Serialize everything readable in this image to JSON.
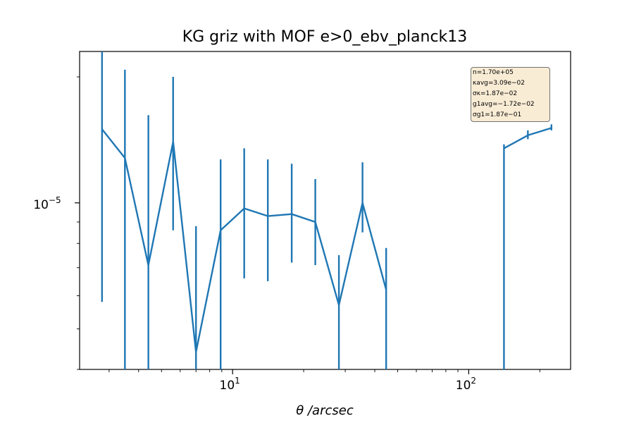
{
  "chart_data": {
    "type": "line",
    "title": "KG griz with MOF e>0_ebv_planck13",
    "xlabel": "θ /arcsec",
    "ylabel": "",
    "xscale": "log",
    "yscale": "log",
    "xlim": [
      2.25,
      270
    ],
    "ylim": [
      4e-06,
      2.3e-05
    ],
    "x_ticks": [
      {
        "base": "10",
        "exp": "1",
        "value": 10
      },
      {
        "base": "10",
        "exp": "2",
        "value": 100
      }
    ],
    "y_ticks": [
      {
        "base": "10",
        "exp": "−5",
        "value": 1e-05
      }
    ],
    "grid": false,
    "line_color": "#1f77b4",
    "series": [
      {
        "segments": [
          [
            {
              "x": 2.8,
              "y": 1.5e-05,
              "ylo": 5.8e-06,
              "yhi": 2.45e-05
            },
            {
              "x": 3.5,
              "y": 1.28e-05,
              "ylo": 4e-06,
              "yhi": 2.08e-05
            },
            {
              "x": 4.4,
              "y": 7.1e-06,
              "ylo": 4e-06,
              "yhi": 1.62e-05
            },
            {
              "x": 5.6,
              "y": 1.4e-05,
              "ylo": 8.6e-06,
              "yhi": 2e-05
            },
            {
              "x": 7.0,
              "y": 4.4e-06,
              "ylo": 4e-06,
              "yhi": 8.8e-06
            },
            {
              "x": 8.9,
              "y": 8.6e-06,
              "ylo": 4e-06,
              "yhi": 1.27e-05
            },
            {
              "x": 11.2,
              "y": 9.7e-06,
              "ylo": 6.6e-06,
              "yhi": 1.35e-05
            },
            {
              "x": 14.1,
              "y": 9.3e-06,
              "ylo": 6.5e-06,
              "yhi": 1.27e-05
            },
            {
              "x": 17.8,
              "y": 9.4e-06,
              "ylo": 7.2e-06,
              "yhi": 1.24e-05
            },
            {
              "x": 22.4,
              "y": 9e-06,
              "ylo": 7.1e-06,
              "yhi": 1.14e-05
            },
            {
              "x": 28.2,
              "y": 5.7e-06,
              "ylo": 4e-06,
              "yhi": 7.5e-06
            },
            {
              "x": 35.5,
              "y": 1e-05,
              "ylo": 8.5e-06,
              "yhi": 1.25e-05
            },
            {
              "x": 44.7,
              "y": 6.2e-06,
              "ylo": 4e-06,
              "yhi": 7.8e-06
            }
          ],
          [
            {
              "x": 141,
              "y": 1.35e-05,
              "ylo": 4e-06,
              "yhi": 1.38e-05
            },
            {
              "x": 178,
              "y": 1.45e-05,
              "ylo": 1.42e-05,
              "yhi": 1.49e-05
            },
            {
              "x": 224,
              "y": 1.51e-05,
              "ylo": 1.49e-05,
              "yhi": 1.54e-05
            }
          ]
        ]
      }
    ],
    "annotations": [
      "n=1.70e+05",
      "κavg=3.09e−02",
      "σκ=1.87e−02",
      "g1avg=−1.72e−02",
      "σg1=1.87e−01"
    ],
    "annotation_placement": "top-right"
  }
}
